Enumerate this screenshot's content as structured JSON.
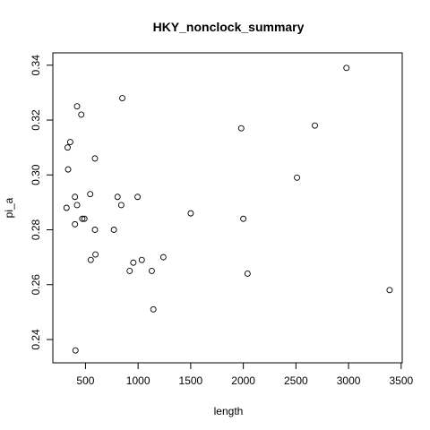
{
  "chart_data": {
    "type": "scatter",
    "title": "HKY_nonclock_summary",
    "xlabel": "length",
    "ylabel": "pi_a",
    "xlim": [
      190,
      3510
    ],
    "ylim": [
      0.2315,
      0.3445
    ],
    "xticks": [
      500,
      1000,
      1500,
      2000,
      2500,
      3000,
      3500
    ],
    "xtick_labels": [
      "500",
      "1000",
      "1500",
      "2000",
      "2500",
      "3000",
      "3500"
    ],
    "yticks": [
      0.24,
      0.26,
      0.28,
      0.3,
      0.32,
      0.34
    ],
    "ytick_labels": [
      "0.24",
      "0.26",
      "0.28",
      "0.30",
      "0.32",
      "0.34"
    ],
    "grid": false,
    "legend": "none",
    "marker": "open-circle",
    "points": [
      {
        "x": 320,
        "y": 0.288
      },
      {
        "x": 330,
        "y": 0.31
      },
      {
        "x": 335,
        "y": 0.302
      },
      {
        "x": 355,
        "y": 0.312
      },
      {
        "x": 400,
        "y": 0.292
      },
      {
        "x": 400,
        "y": 0.282
      },
      {
        "x": 405,
        "y": 0.236
      },
      {
        "x": 420,
        "y": 0.289
      },
      {
        "x": 420,
        "y": 0.325
      },
      {
        "x": 460,
        "y": 0.322
      },
      {
        "x": 470,
        "y": 0.284
      },
      {
        "x": 490,
        "y": 0.284
      },
      {
        "x": 545,
        "y": 0.293
      },
      {
        "x": 550,
        "y": 0.269
      },
      {
        "x": 590,
        "y": 0.306
      },
      {
        "x": 590,
        "y": 0.28
      },
      {
        "x": 595,
        "y": 0.271
      },
      {
        "x": 770,
        "y": 0.28
      },
      {
        "x": 805,
        "y": 0.292
      },
      {
        "x": 840,
        "y": 0.289
      },
      {
        "x": 850,
        "y": 0.328
      },
      {
        "x": 920,
        "y": 0.265
      },
      {
        "x": 955,
        "y": 0.268
      },
      {
        "x": 995,
        "y": 0.292
      },
      {
        "x": 1035,
        "y": 0.269
      },
      {
        "x": 1130,
        "y": 0.265
      },
      {
        "x": 1145,
        "y": 0.251
      },
      {
        "x": 1240,
        "y": 0.27
      },
      {
        "x": 1500,
        "y": 0.286
      },
      {
        "x": 1980,
        "y": 0.317
      },
      {
        "x": 2000,
        "y": 0.284
      },
      {
        "x": 2040,
        "y": 0.264
      },
      {
        "x": 2510,
        "y": 0.299
      },
      {
        "x": 2680,
        "y": 0.318
      },
      {
        "x": 2980,
        "y": 0.339
      },
      {
        "x": 3390,
        "y": 0.258
      }
    ]
  }
}
